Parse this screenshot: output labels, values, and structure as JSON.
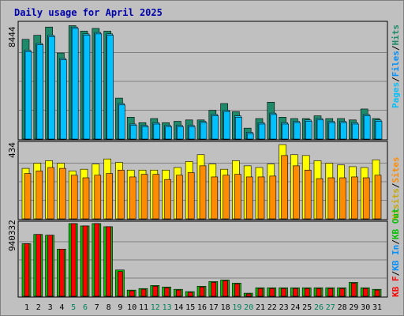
{
  "title": "Daily usage for April 2025",
  "colors": {
    "bg": "#c0c0c0",
    "panel": "#c0c0c0",
    "title": "#0000aa",
    "hits": "#1e8a6a",
    "files": "#22c7f0",
    "pages": "#00c0ff",
    "visits": "#ffff00",
    "sites": "#ff8c00",
    "kbf": "#ff0000",
    "kbin": "#00b0ff",
    "kbout": "#00c000",
    "weekend": "#00805a",
    "weekday": "#000000"
  },
  "panel_labels": {
    "top": {
      "max": "8444",
      "legend": [
        "Pages",
        "/",
        "Files",
        "/",
        "Hits"
      ]
    },
    "middle": {
      "max": "434",
      "legend": [
        "Visits",
        "/",
        "Sites"
      ]
    },
    "bottom": {
      "max": "940332",
      "legend": [
        "KB F",
        "/",
        "KB In",
        "/",
        "KB Out"
      ]
    }
  },
  "chart_data": [
    {
      "type": "bar",
      "title": "Daily usage for April 2025",
      "categories": [
        "1",
        "2",
        "3",
        "4",
        "5",
        "6",
        "7",
        "8",
        "9",
        "10",
        "11",
        "12",
        "13",
        "14",
        "15",
        "16",
        "17",
        "18",
        "19",
        "20",
        "21",
        "22",
        "23",
        "24",
        "25",
        "26",
        "27",
        "28",
        "29",
        "30",
        "31"
      ],
      "weekend_days": [
        "5",
        "6",
        "12",
        "13",
        "19",
        "20",
        "26",
        "27"
      ],
      "ylim": [
        0,
        8444
      ],
      "series": [
        {
          "name": "Hits",
          "values": [
            7300,
            7600,
            8200,
            6300,
            8300,
            7900,
            8100,
            7900,
            3000,
            1600,
            1200,
            1500,
            1200,
            1300,
            1400,
            1400,
            2100,
            2600,
            2000,
            800,
            1500,
            2700,
            1600,
            1500,
            1500,
            1700,
            1500,
            1500,
            1400,
            2200,
            1500
          ]
        },
        {
          "name": "Files",
          "values": [
            6500,
            7000,
            7600,
            5900,
            8200,
            7700,
            7800,
            7700,
            2600,
            1100,
            1000,
            1200,
            1000,
            1000,
            1000,
            1300,
            1800,
            2100,
            1700,
            500,
            1200,
            1900,
            1200,
            1300,
            1400,
            1500,
            1300,
            1300,
            1200,
            1800,
            1400
          ]
        },
        {
          "name": "Pages",
          "values": [
            6400,
            6900,
            7500,
            5800,
            8100,
            7600,
            7700,
            7600,
            2500,
            1000,
            900,
            1100,
            900,
            900,
            900,
            1200,
            1700,
            2000,
            1600,
            400,
            1100,
            1800,
            1100,
            1200,
            1300,
            1400,
            1200,
            1200,
            1100,
            1700,
            1300
          ]
        }
      ]
    },
    {
      "type": "bar",
      "categories": [
        "1",
        "2",
        "3",
        "4",
        "5",
        "6",
        "7",
        "8",
        "9",
        "10",
        "11",
        "12",
        "13",
        "14",
        "15",
        "16",
        "17",
        "18",
        "19",
        "20",
        "21",
        "22",
        "23",
        "24",
        "25",
        "26",
        "27",
        "28",
        "29",
        "30",
        "31"
      ],
      "ylim": [
        0,
        434
      ],
      "series": [
        {
          "name": "Visits",
          "values": [
            295,
            325,
            340,
            325,
            280,
            290,
            320,
            350,
            330,
            285,
            285,
            285,
            285,
            300,
            335,
            375,
            320,
            290,
            340,
            310,
            300,
            320,
            434,
            375,
            370,
            340,
            325,
            315,
            305,
            300,
            345
          ]
        },
        {
          "name": "Sites",
          "values": [
            265,
            280,
            300,
            295,
            255,
            240,
            255,
            265,
            285,
            245,
            260,
            260,
            230,
            255,
            270,
            310,
            245,
            255,
            260,
            245,
            245,
            250,
            370,
            310,
            285,
            235,
            240,
            240,
            245,
            240,
            255
          ]
        }
      ]
    },
    {
      "type": "bar",
      "categories": [
        "1",
        "2",
        "3",
        "4",
        "5",
        "6",
        "7",
        "8",
        "9",
        "10",
        "11",
        "12",
        "13",
        "14",
        "15",
        "16",
        "17",
        "18",
        "19",
        "20",
        "21",
        "22",
        "23",
        "24",
        "25",
        "26",
        "27",
        "28",
        "29",
        "30",
        "31"
      ],
      "ylim": [
        0,
        940332
      ],
      "series": [
        {
          "name": "KB F",
          "values": [
            680000,
            800000,
            790000,
            610000,
            940332,
            910000,
            940332,
            900000,
            340000,
            80000,
            100000,
            140000,
            120000,
            90000,
            60000,
            130000,
            190000,
            210000,
            170000,
            40000,
            110000,
            110000,
            110000,
            110000,
            110000,
            110000,
            110000,
            110000,
            180000,
            110000,
            90000
          ]
        },
        {
          "name": "KB Out",
          "values": [
            680000,
            800000,
            790000,
            610000,
            940332,
            910000,
            940332,
            900000,
            320000,
            70000,
            90000,
            130000,
            110000,
            80000,
            50000,
            120000,
            180000,
            200000,
            160000,
            30000,
            100000,
            100000,
            100000,
            100000,
            100000,
            100000,
            100000,
            100000,
            170000,
            100000,
            80000
          ]
        }
      ]
    }
  ]
}
